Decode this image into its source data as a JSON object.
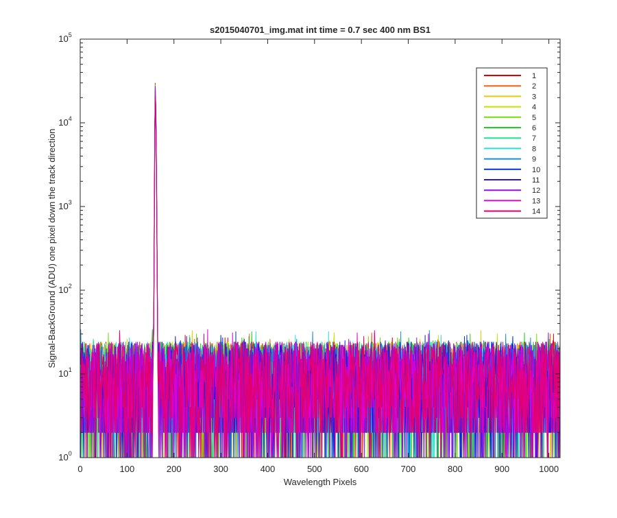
{
  "chart_data": {
    "type": "line",
    "title": "s2015040701_img.mat int time = 0.7 sec  400 nm BS1",
    "xlabel": "Wavelength Pixels",
    "ylabel": "Signal-BackGround (ADU) one pixel down the track direction",
    "xlim": [
      0,
      1024
    ],
    "ylim": [
      1,
      100000
    ],
    "yscale": "log",
    "x_ticks": [
      "0",
      "100",
      "200",
      "300",
      "400",
      "500",
      "600",
      "700",
      "800",
      "900",
      "1000"
    ],
    "y_ticks": [
      {
        "base": "10",
        "exp": "0"
      },
      {
        "base": "10",
        "exp": "1"
      },
      {
        "base": "10",
        "exp": "2"
      },
      {
        "base": "10",
        "exp": "3"
      },
      {
        "base": "10",
        "exp": "4"
      },
      {
        "base": "10",
        "exp": "5"
      }
    ],
    "grid": false,
    "legend_position": "top-right",
    "noise_description": {
      "background_range": [
        1,
        40
      ],
      "typical_level": 8
    },
    "peak": {
      "x_range": [
        155,
        168
      ],
      "profile": [
        {
          "x": 155,
          "y": 12
        },
        {
          "x": 157,
          "y": 60
        },
        {
          "x": 158,
          "y": 600
        },
        {
          "x": 159,
          "y": 8000
        },
        {
          "x": 160,
          "y": 27000
        },
        {
          "x": 161,
          "y": 18000
        },
        {
          "x": 162,
          "y": 9000
        },
        {
          "x": 163,
          "y": 2000
        },
        {
          "x": 164,
          "y": 300
        },
        {
          "x": 165,
          "y": 40
        },
        {
          "x": 166,
          "y": 12
        }
      ]
    },
    "series": [
      {
        "name": "1",
        "color": "#e00000"
      },
      {
        "name": "2",
        "color": "#f06010"
      },
      {
        "name": "3",
        "color": "#f0c800"
      },
      {
        "name": "4",
        "color": "#c8e000"
      },
      {
        "name": "5",
        "color": "#70e000"
      },
      {
        "name": "6",
        "color": "#20d020"
      },
      {
        "name": "7",
        "color": "#20e090"
      },
      {
        "name": "8",
        "color": "#20e0e0"
      },
      {
        "name": "9",
        "color": "#1890d0"
      },
      {
        "name": "10",
        "color": "#0030e0"
      },
      {
        "name": "11",
        "color": "#3010e0"
      },
      {
        "name": "12",
        "color": "#9010e0"
      },
      {
        "name": "13",
        "color": "#e000d0"
      },
      {
        "name": "14",
        "color": "#e00070"
      }
    ]
  }
}
